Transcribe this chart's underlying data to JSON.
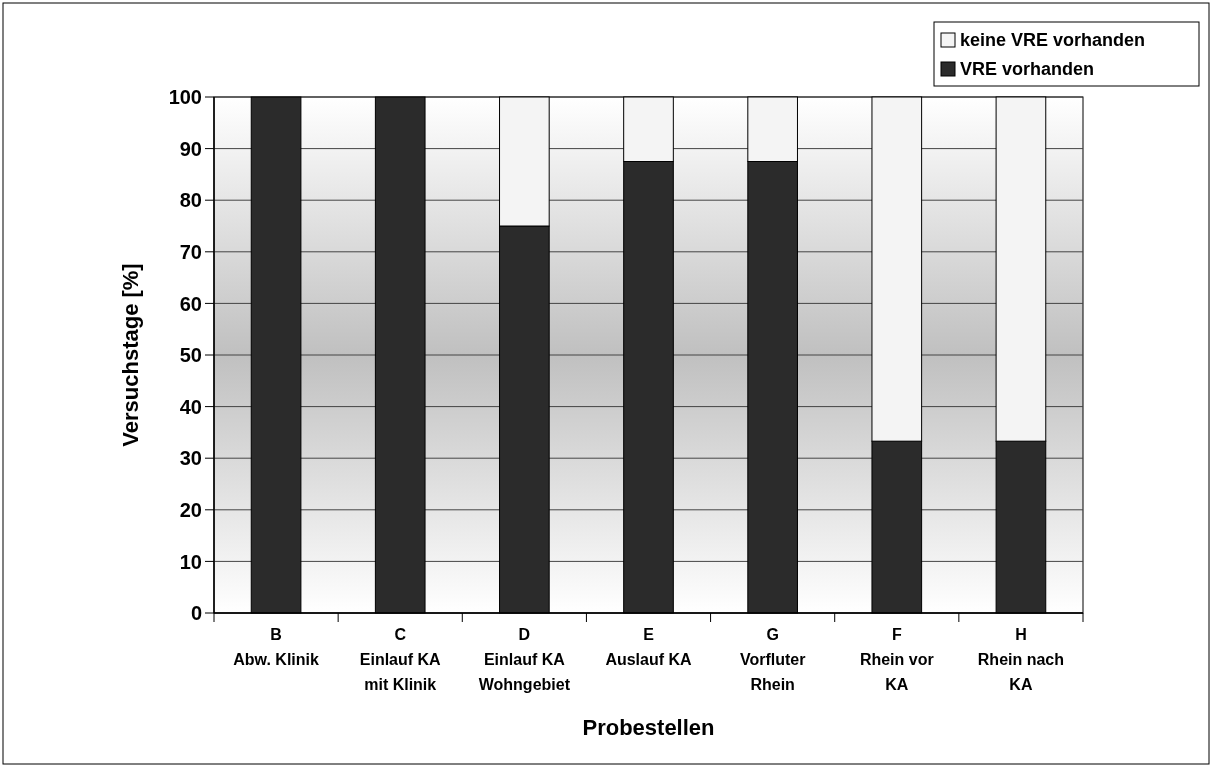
{
  "chart_data": {
    "type": "bar",
    "stacked": true,
    "categories": [
      "B\nAbw. Klinik",
      "C\nEinlauf KA\nmit Klinik",
      "D\nEinlauf KA\nWohngebiet",
      "E\nAuslauf KA",
      "G\nVorfluter\nRhein",
      "F\nRhein vor\nKA",
      "H\nRhein nach\nKA"
    ],
    "series": [
      {
        "name": "VRE vorhanden",
        "color": "#2b2b2b",
        "values": [
          100,
          100,
          75,
          87.5,
          87.5,
          33.3,
          33.3
        ]
      },
      {
        "name": "keine VRE vorhanden",
        "color": "#f4f4f4",
        "values": [
          0,
          0,
          25,
          12.5,
          12.5,
          66.7,
          66.7
        ]
      }
    ],
    "xlabel": "Probestellen",
    "ylabel": "Versuchstage [%]",
    "ylim": [
      0,
      100
    ],
    "yticks": [
      0,
      10,
      20,
      30,
      40,
      50,
      60,
      70,
      80,
      90,
      100
    ],
    "grid": "y",
    "legend": "top right"
  }
}
